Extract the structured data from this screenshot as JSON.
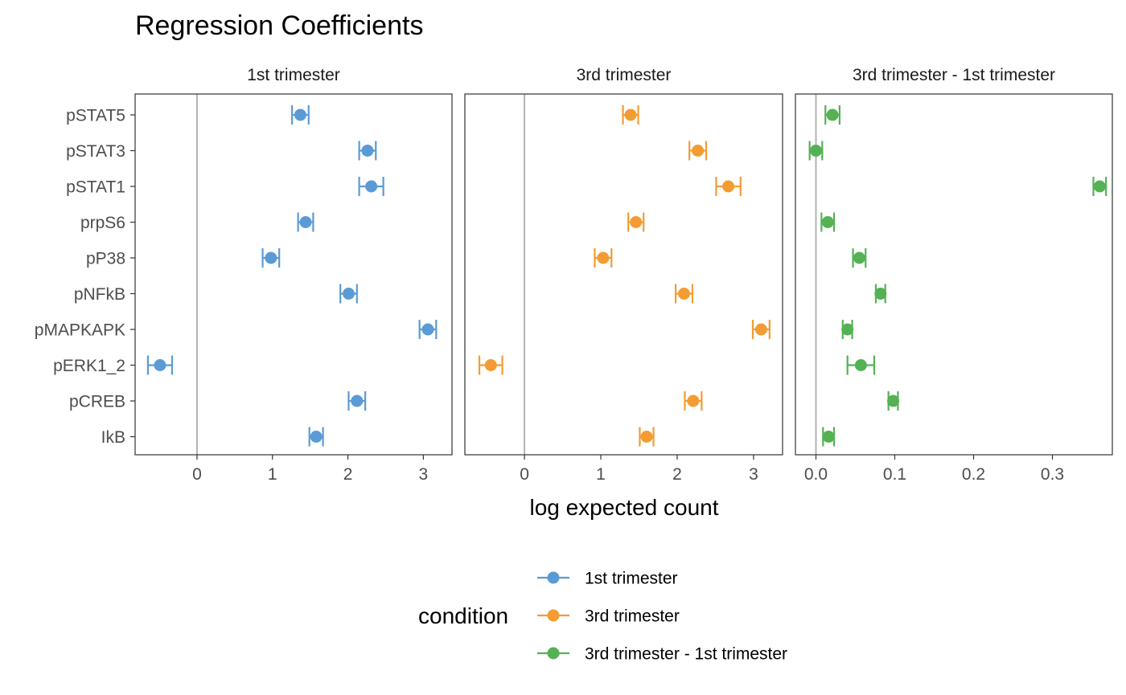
{
  "chart_data": {
    "type": "scatter",
    "title": "Regression Coefficients",
    "xlabel": "log expected count",
    "ylabel": "",
    "categories": [
      "pSTAT5",
      "pSTAT3",
      "pSTAT1",
      "prpS6",
      "pP38",
      "pNFkB",
      "pMAPKAPK",
      "pERK1_2",
      "pCREB",
      "IkB"
    ],
    "grid": false,
    "reference_line_x": 0,
    "panels": [
      {
        "name": "1st trimester",
        "color": "#5b9bd5",
        "xlim": [
          -0.82,
          3.38
        ],
        "xticks": [
          0,
          1,
          2,
          3
        ],
        "xtick_labels": [
          "0",
          "1",
          "2",
          "3"
        ],
        "points": [
          {
            "category": "pSTAT5",
            "value": 1.37,
            "low": 1.26,
            "high": 1.48
          },
          {
            "category": "pSTAT3",
            "value": 2.26,
            "low": 2.15,
            "high": 2.37
          },
          {
            "category": "pSTAT1",
            "value": 2.31,
            "low": 2.15,
            "high": 2.47
          },
          {
            "category": "prpS6",
            "value": 1.44,
            "low": 1.34,
            "high": 1.54
          },
          {
            "category": "pP38",
            "value": 0.98,
            "low": 0.87,
            "high": 1.09
          },
          {
            "category": "pNFkB",
            "value": 2.01,
            "low": 1.9,
            "high": 2.12
          },
          {
            "category": "pMAPKAPK",
            "value": 3.06,
            "low": 2.95,
            "high": 3.17
          },
          {
            "category": "pERK1_2",
            "value": -0.49,
            "low": -0.65,
            "high": -0.33
          },
          {
            "category": "pCREB",
            "value": 2.12,
            "low": 2.01,
            "high": 2.23
          },
          {
            "category": "IkB",
            "value": 1.58,
            "low": 1.49,
            "high": 1.67
          }
        ]
      },
      {
        "name": "3rd trimester",
        "color": "#f39c34",
        "xlim": [
          -0.78,
          3.38
        ],
        "xticks": [
          0,
          1,
          2,
          3
        ],
        "xtick_labels": [
          "0",
          "1",
          "2",
          "3"
        ],
        "points": [
          {
            "category": "pSTAT5",
            "value": 1.39,
            "low": 1.29,
            "high": 1.49
          },
          {
            "category": "pSTAT3",
            "value": 2.27,
            "low": 2.16,
            "high": 2.38
          },
          {
            "category": "pSTAT1",
            "value": 2.67,
            "low": 2.51,
            "high": 2.83
          },
          {
            "category": "prpS6",
            "value": 1.46,
            "low": 1.36,
            "high": 1.56
          },
          {
            "category": "pP38",
            "value": 1.03,
            "low": 0.92,
            "high": 1.14
          },
          {
            "category": "pNFkB",
            "value": 2.09,
            "low": 1.98,
            "high": 2.2
          },
          {
            "category": "pMAPKAPK",
            "value": 3.1,
            "low": 2.99,
            "high": 3.21
          },
          {
            "category": "pERK1_2",
            "value": -0.44,
            "low": -0.59,
            "high": -0.29
          },
          {
            "category": "pCREB",
            "value": 2.21,
            "low": 2.1,
            "high": 2.32
          },
          {
            "category": "IkB",
            "value": 1.6,
            "low": 1.51,
            "high": 1.69
          }
        ]
      },
      {
        "name": "3rd trimester - 1st trimester",
        "color": "#55b254",
        "xlim": [
          -0.026,
          0.376
        ],
        "xticks": [
          0,
          0.1,
          0.2,
          0.3
        ],
        "xtick_labels": [
          "0.0",
          "0.1",
          "0.2",
          "0.3"
        ],
        "points": [
          {
            "category": "pSTAT5",
            "value": 0.021,
            "low": 0.012,
            "high": 0.03
          },
          {
            "category": "pSTAT3",
            "value": 0.0,
            "low": -0.008,
            "high": 0.008
          },
          {
            "category": "pSTAT1",
            "value": 0.36,
            "low": 0.352,
            "high": 0.368
          },
          {
            "category": "prpS6",
            "value": 0.015,
            "low": 0.007,
            "high": 0.023
          },
          {
            "category": "pP38",
            "value": 0.055,
            "low": 0.047,
            "high": 0.063
          },
          {
            "category": "pNFkB",
            "value": 0.082,
            "low": 0.076,
            "high": 0.088
          },
          {
            "category": "pMAPKAPK",
            "value": 0.04,
            "low": 0.034,
            "high": 0.046
          },
          {
            "category": "pERK1_2",
            "value": 0.057,
            "low": 0.04,
            "high": 0.074
          },
          {
            "category": "pCREB",
            "value": 0.098,
            "low": 0.092,
            "high": 0.104
          },
          {
            "category": "IkB",
            "value": 0.016,
            "low": 0.009,
            "high": 0.023
          }
        ]
      }
    ],
    "legend": {
      "title": "condition",
      "placement": "bottom",
      "entries": [
        {
          "label": "1st trimester",
          "color": "#5b9bd5"
        },
        {
          "label": "3rd trimester",
          "color": "#f39c34"
        },
        {
          "label": "3rd trimester - 1st trimester",
          "color": "#55b254"
        }
      ]
    }
  }
}
